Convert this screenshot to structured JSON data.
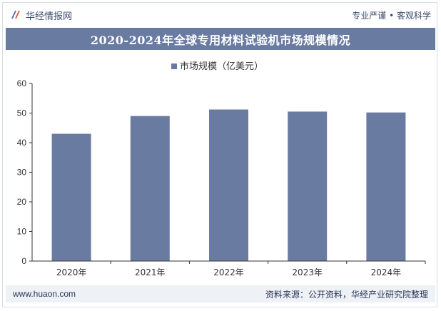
{
  "header": {
    "brand": "华经情报网",
    "slogan": "专业严谨 • 客观科学"
  },
  "title": "2020-2024年全球专用材料试验机市场规模情况",
  "footer": {
    "website": "www.huaon.com",
    "source": "资料来源：公开资料，华经产业研究院整理"
  },
  "colors": {
    "bar": "#6a7ba2",
    "accent": "#3c4a6b"
  },
  "chart_data": {
    "type": "bar",
    "title": "2020-2024年全球专用材料试验机市场规模情况",
    "categories": [
      "2020年",
      "2021年",
      "2022年",
      "2023年",
      "2024年"
    ],
    "series": [
      {
        "name": "市场规模（亿美元）",
        "values": [
          43.0,
          49.0,
          51.2,
          50.5,
          50.2
        ]
      }
    ],
    "ylim": [
      0,
      60
    ],
    "yticks": [
      0,
      10,
      20,
      30,
      40,
      50,
      60
    ],
    "legend_position": "top-center",
    "grid": false,
    "xlabel": "",
    "ylabel": ""
  }
}
